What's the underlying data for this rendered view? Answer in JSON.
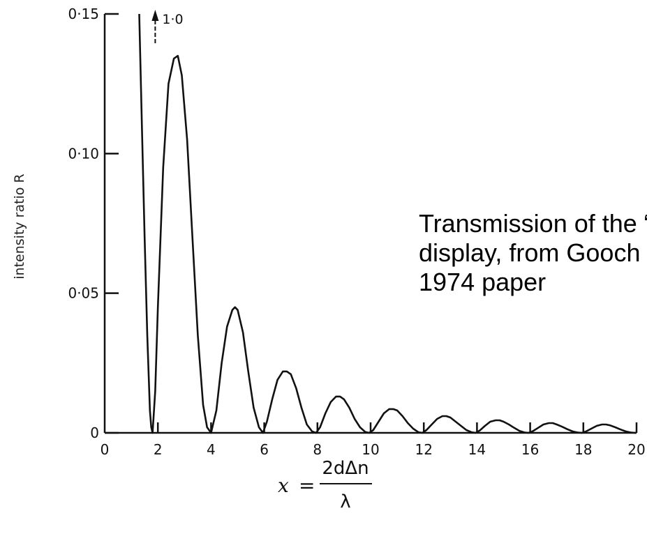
{
  "chart_data": {
    "type": "line",
    "xlabel": {
      "lhs": "x",
      "equals": "=",
      "numerator": "2dΔn",
      "denominator": "λ"
    },
    "ylabel": "intensity ratio R",
    "xlim": [
      0,
      20
    ],
    "ylim": [
      0,
      0.15
    ],
    "x_ticks": [
      {
        "value": 0,
        "label": "0"
      },
      {
        "value": 2,
        "label": "2"
      },
      {
        "value": 4,
        "label": "4"
      },
      {
        "value": 6,
        "label": "6"
      },
      {
        "value": 8,
        "label": "8"
      },
      {
        "value": 10,
        "label": "10"
      },
      {
        "value": 12,
        "label": "12"
      },
      {
        "value": 14,
        "label": "14"
      },
      {
        "value": 16,
        "label": "16"
      },
      {
        "value": 18,
        "label": "18"
      },
      {
        "value": 20,
        "label": "20"
      }
    ],
    "y_ticks": [
      {
        "value": 0,
        "label": "0"
      },
      {
        "value": 0.05,
        "label": "0·05"
      },
      {
        "value": 0.1,
        "label": "0·10"
      },
      {
        "value": 0.15,
        "label": "0·15"
      }
    ],
    "annotation": {
      "label": "1·0",
      "x": 1.9,
      "note": "arrow up: curve continues off-scale to 1.0"
    },
    "grid": false,
    "series": [
      {
        "x": [
          1.3,
          1.4,
          1.5,
          1.6,
          1.7,
          1.75,
          1.8,
          1.9,
          2.0,
          2.2,
          2.4,
          2.6,
          2.75,
          2.9,
          3.1,
          3.3,
          3.5,
          3.7,
          3.85,
          4.0,
          4.2,
          4.4,
          4.6,
          4.8,
          4.9,
          5.0,
          5.2,
          5.4,
          5.6,
          5.8,
          5.95,
          6.1,
          6.3,
          6.5,
          6.7,
          6.85,
          7.0,
          7.2,
          7.4,
          7.6,
          7.8,
          7.95,
          8.1,
          8.3,
          8.5,
          8.7,
          8.85,
          9.0,
          9.2,
          9.4,
          9.6,
          9.8,
          9.95,
          10.1,
          10.3,
          10.5,
          10.7,
          10.85,
          11.0,
          11.2,
          11.4,
          11.6,
          11.8,
          11.95,
          12.1,
          12.3,
          12.5,
          12.7,
          12.85,
          13.0,
          13.2,
          13.4,
          13.6,
          13.8,
          13.95,
          14.1,
          14.3,
          14.5,
          14.7,
          14.85,
          15.0,
          15.2,
          15.4,
          15.6,
          15.8,
          15.95,
          16.1,
          16.3,
          16.5,
          16.7,
          16.85,
          17.0,
          17.2,
          17.4,
          17.6,
          17.8,
          17.95,
          18.1,
          18.3,
          18.5,
          18.7,
          18.85,
          19.0,
          19.2,
          19.4,
          19.6,
          19.8,
          19.95,
          20.0
        ],
        "y": [
          0.15,
          0.11,
          0.07,
          0.035,
          0.008,
          0.002,
          0.0,
          0.015,
          0.045,
          0.095,
          0.125,
          0.134,
          0.135,
          0.128,
          0.105,
          0.07,
          0.035,
          0.01,
          0.002,
          0.0,
          0.008,
          0.025,
          0.038,
          0.044,
          0.045,
          0.044,
          0.036,
          0.022,
          0.009,
          0.002,
          0.0,
          0.004,
          0.012,
          0.019,
          0.022,
          0.022,
          0.021,
          0.016,
          0.009,
          0.003,
          0.0005,
          0.0,
          0.002,
          0.007,
          0.011,
          0.013,
          0.013,
          0.012,
          0.009,
          0.005,
          0.002,
          0.0003,
          0.0,
          0.001,
          0.004,
          0.007,
          0.0085,
          0.0085,
          0.008,
          0.006,
          0.0035,
          0.0015,
          0.0002,
          0.0,
          0.001,
          0.003,
          0.005,
          0.006,
          0.006,
          0.0055,
          0.004,
          0.0025,
          0.001,
          0.0002,
          0.0,
          0.0008,
          0.0025,
          0.004,
          0.0045,
          0.0045,
          0.004,
          0.003,
          0.0018,
          0.0007,
          0.0001,
          0.0,
          0.0006,
          0.0018,
          0.003,
          0.0035,
          0.0035,
          0.003,
          0.0022,
          0.0013,
          0.0005,
          0.0001,
          0.0,
          0.0005,
          0.0015,
          0.0025,
          0.003,
          0.003,
          0.0027,
          0.002,
          0.0012,
          0.0005,
          0.0001,
          0.0,
          0.0
        ]
      }
    ]
  },
  "caption": {
    "line1": "Transmission of the “ne",
    "line2": "display, from Gooch an",
    "line3": "1974 paper"
  }
}
